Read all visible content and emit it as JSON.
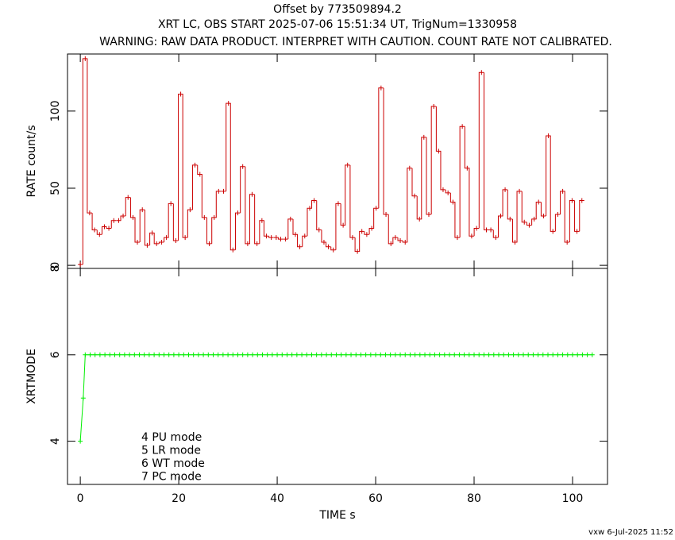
{
  "chart_data": [
    {
      "type": "step",
      "title": "Offset by 773509894.2",
      "subtitle": "XRT LC, OBS START 2025-07-06 15:51:34 UT, TrigNum=1330958",
      "warning": "WARNING: RAW DATA PRODUCT. INTERPRET WITH CAUTION. COUNT RATE NOT CALIBRATED.",
      "ylabel": "RATE  count/s",
      "color": "#cc0000",
      "xlim": [
        -2.6,
        107.1
      ],
      "xticks": [
        0,
        20,
        40,
        60,
        80,
        100
      ],
      "ylim": [
        -2,
        137
      ],
      "yticks": [
        0,
        50,
        100
      ],
      "x": [
        0,
        1.0,
        1.9,
        2.9,
        3.9,
        4.9,
        5.8,
        6.8,
        7.8,
        8.7,
        9.7,
        10.7,
        11.6,
        12.6,
        13.6,
        14.6,
        15.5,
        16.5,
        17.5,
        18.4,
        19.4,
        20.4,
        21.3,
        22.3,
        23.3,
        24.3,
        25.2,
        26.2,
        27.2,
        28.1,
        29.1,
        30.1,
        31.0,
        32.0,
        33.0,
        34.0,
        34.9,
        35.9,
        36.9,
        37.8,
        38.8,
        39.8,
        40.7,
        41.7,
        42.7,
        43.7,
        44.6,
        45.6,
        46.6,
        47.5,
        48.5,
        49.5,
        50.4,
        51.4,
        52.4,
        53.4,
        54.3,
        55.3,
        56.3,
        57.2,
        58.2,
        59.2,
        60.1,
        61.1,
        62.1,
        63.1,
        64.0,
        65.0,
        66.0,
        66.9,
        67.9,
        68.9,
        69.8,
        70.8,
        71.8,
        72.8,
        73.7,
        74.7,
        75.7,
        76.6,
        77.6,
        78.6,
        79.5,
        80.5,
        81.5,
        82.5,
        83.4,
        84.4,
        85.4,
        86.3,
        87.3,
        88.3,
        89.2,
        90.2,
        91.2,
        92.2,
        93.1,
        94.1,
        95.1,
        96.0,
        97.0,
        98.0,
        98.9,
        99.9,
        100.9,
        101.9
      ],
      "values": [
        0.5,
        134,
        34,
        23,
        20,
        25,
        24,
        29,
        29,
        32,
        44,
        31,
        15,
        36,
        13,
        21,
        14,
        15,
        18,
        40,
        16,
        111,
        18,
        36,
        65,
        59,
        31,
        14,
        31,
        48,
        48,
        105,
        10,
        34,
        64,
        14,
        46,
        14,
        29,
        19,
        18,
        18,
        17,
        17,
        30,
        20,
        12,
        19,
        37,
        42,
        23,
        15,
        12,
        10,
        40,
        26,
        65,
        18,
        9,
        22,
        20,
        24,
        37,
        115,
        33,
        14,
        18,
        16,
        15,
        63,
        45,
        30,
        83,
        33,
        103,
        74,
        49,
        47,
        41,
        18,
        90,
        63,
        19,
        24,
        125,
        23,
        23,
        18,
        32,
        49,
        30,
        15,
        48,
        28,
        26,
        30,
        41,
        32,
        84,
        22,
        33,
        48,
        15,
        42,
        22,
        42
      ]
    },
    {
      "type": "line",
      "ylabel": "XRTMODE",
      "xlabel": "TIME  s",
      "color": "#00ee00",
      "xlim": [
        -2.6,
        107.1
      ],
      "xticks": [
        0,
        20,
        40,
        60,
        80,
        100
      ],
      "ylim": [
        3,
        8
      ],
      "yticks": [
        4,
        6,
        8
      ],
      "annotations": [
        "4 PU mode",
        "5 LR mode",
        "6 WT mode",
        "7 PC mode"
      ],
      "x": [
        0,
        0.6,
        1,
        2,
        3,
        4,
        5,
        6,
        7,
        8,
        9,
        10,
        11,
        12,
        13,
        14,
        15,
        16,
        17,
        18,
        19,
        20,
        21,
        22,
        23,
        24,
        25,
        26,
        27,
        28,
        29,
        30,
        31,
        32,
        33,
        34,
        35,
        36,
        37,
        38,
        39,
        40,
        41,
        42,
        43,
        44,
        45,
        46,
        47,
        48,
        49,
        50,
        51,
        52,
        53,
        54,
        55,
        56,
        57,
        58,
        59,
        60,
        61,
        62,
        63,
        64,
        65,
        66,
        67,
        68,
        69,
        70,
        71,
        72,
        73,
        74,
        75,
        76,
        77,
        78,
        79,
        80,
        81,
        82,
        83,
        84,
        85,
        86,
        87,
        88,
        89,
        90,
        91,
        92,
        93,
        94,
        95,
        96,
        97,
        98,
        99,
        100,
        101,
        102,
        103,
        104
      ],
      "values": [
        4,
        5,
        6,
        6,
        6,
        6,
        6,
        6,
        6,
        6,
        6,
        6,
        6,
        6,
        6,
        6,
        6,
        6,
        6,
        6,
        6,
        6,
        6,
        6,
        6,
        6,
        6,
        6,
        6,
        6,
        6,
        6,
        6,
        6,
        6,
        6,
        6,
        6,
        6,
        6,
        6,
        6,
        6,
        6,
        6,
        6,
        6,
        6,
        6,
        6,
        6,
        6,
        6,
        6,
        6,
        6,
        6,
        6,
        6,
        6,
        6,
        6,
        6,
        6,
        6,
        6,
        6,
        6,
        6,
        6,
        6,
        6,
        6,
        6,
        6,
        6,
        6,
        6,
        6,
        6,
        6,
        6,
        6,
        6,
        6,
        6,
        6,
        6,
        6,
        6,
        6,
        6,
        6,
        6,
        6,
        6,
        6,
        6,
        6,
        6,
        6,
        6,
        6,
        6,
        6,
        6
      ]
    }
  ],
  "footer": "vxw  6-Jul-2025 11:52"
}
